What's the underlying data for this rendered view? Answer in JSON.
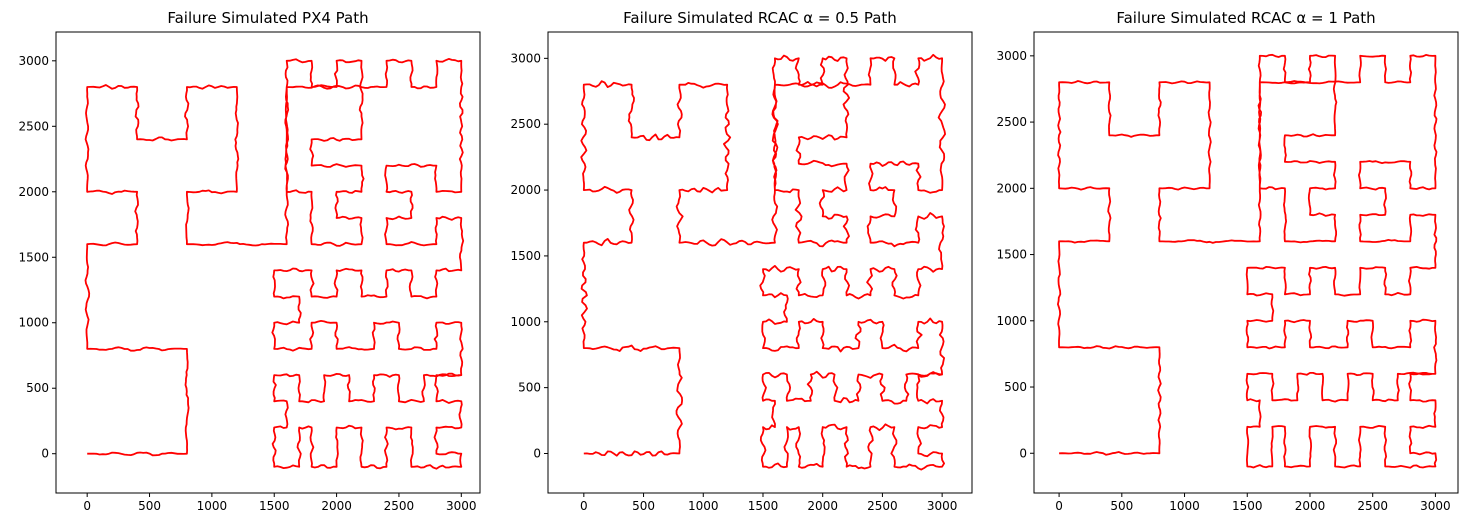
{
  "chart_data": [
    {
      "type": "line",
      "title": "Failure Simulated PX4 Path",
      "xlabel": "",
      "ylabel": "",
      "xlim": [
        -250,
        3150
      ],
      "ylim": [
        -300,
        3220
      ],
      "xticks": [
        0,
        500,
        1000,
        1500,
        2000,
        2500,
        3000
      ],
      "yticks": [
        0,
        500,
        1000,
        1500,
        2000,
        2500,
        3000
      ],
      "grid": false,
      "series": [
        {
          "color": "#ff0000",
          "disturbance": 0.25,
          "seed": 11
        }
      ]
    },
    {
      "type": "line",
      "title": "Failure Simulated RCAC α = 0.5 Path",
      "xlabel": "",
      "ylabel": "",
      "xlim": [
        -300,
        3250
      ],
      "ylim": [
        -300,
        3200
      ],
      "xticks": [
        0,
        500,
        1000,
        1500,
        2000,
        2500,
        3000
      ],
      "yticks": [
        0,
        500,
        1000,
        1500,
        2000,
        2500,
        3000
      ],
      "grid": false,
      "series": [
        {
          "color": "#ff0000",
          "disturbance": 0.45,
          "seed": 29
        }
      ]
    },
    {
      "type": "line",
      "title": "Failure Simulated RCAC α = 1 Path",
      "xlabel": "",
      "ylabel": "",
      "xlim": [
        -200,
        3180
      ],
      "ylim": [
        -300,
        3180
      ],
      "xticks": [
        0,
        500,
        1000,
        1500,
        2000,
        2500,
        3000
      ],
      "yticks": [
        0,
        500,
        1000,
        1500,
        2000,
        2500,
        3000
      ],
      "grid": false,
      "series": [
        {
          "color": "#ff0000",
          "disturbance": 0.18,
          "seed": 47
        }
      ]
    }
  ],
  "path_waypoints": [
    [
      0,
      0
    ],
    [
      800,
      0
    ],
    [
      800,
      800
    ],
    [
      0,
      800
    ],
    [
      0,
      1600
    ],
    [
      400,
      1600
    ],
    [
      400,
      2000
    ],
    [
      0,
      2000
    ],
    [
      0,
      2800
    ],
    [
      400,
      2800
    ],
    [
      400,
      2400
    ],
    [
      800,
      2400
    ],
    [
      800,
      2800
    ],
    [
      1200,
      2800
    ],
    [
      1200,
      2000
    ],
    [
      800,
      2000
    ],
    [
      800,
      1600
    ],
    [
      1600,
      1600
    ],
    [
      1600,
      2000
    ],
    [
      1600,
      2400
    ],
    [
      1600,
      2800
    ],
    [
      1600,
      3000
    ],
    [
      1800,
      3000
    ],
    [
      1800,
      2800
    ],
    [
      2000,
      2800
    ],
    [
      2000,
      3000
    ],
    [
      2200,
      3000
    ],
    [
      2200,
      2400
    ],
    [
      1800,
      2400
    ],
    [
      1800,
      2200
    ],
    [
      2200,
      2200
    ],
    [
      2200,
      2000
    ],
    [
      2000,
      2000
    ],
    [
      2000,
      1800
    ],
    [
      2200,
      1800
    ],
    [
      2200,
      1600
    ],
    [
      1800,
      1600
    ],
    [
      1800,
      2000
    ],
    [
      1600,
      2000
    ],
    [
      1600,
      2800
    ],
    [
      2400,
      2800
    ],
    [
      2400,
      3000
    ],
    [
      2600,
      3000
    ],
    [
      2600,
      2800
    ],
    [
      2800,
      2800
    ],
    [
      2800,
      3000
    ],
    [
      3000,
      3000
    ],
    [
      3000,
      2000
    ],
    [
      2800,
      2000
    ],
    [
      2800,
      2200
    ],
    [
      2400,
      2200
    ],
    [
      2400,
      2000
    ],
    [
      2600,
      2000
    ],
    [
      2600,
      1800
    ],
    [
      2400,
      1800
    ],
    [
      2400,
      1600
    ],
    [
      2800,
      1600
    ],
    [
      2800,
      1800
    ],
    [
      3000,
      1800
    ],
    [
      3000,
      1400
    ],
    [
      2800,
      1400
    ],
    [
      2800,
      1200
    ],
    [
      2600,
      1200
    ],
    [
      2600,
      1400
    ],
    [
      2400,
      1400
    ],
    [
      2400,
      1200
    ],
    [
      2200,
      1200
    ],
    [
      2200,
      1400
    ],
    [
      2000,
      1400
    ],
    [
      2000,
      1200
    ],
    [
      1800,
      1200
    ],
    [
      1800,
      1400
    ],
    [
      1500,
      1400
    ],
    [
      1500,
      1200
    ],
    [
      1700,
      1200
    ],
    [
      1700,
      1000
    ],
    [
      1500,
      1000
    ],
    [
      1500,
      800
    ],
    [
      1800,
      800
    ],
    [
      1800,
      1000
    ],
    [
      2000,
      1000
    ],
    [
      2000,
      800
    ],
    [
      2300,
      800
    ],
    [
      2300,
      1000
    ],
    [
      2500,
      1000
    ],
    [
      2500,
      800
    ],
    [
      2800,
      800
    ],
    [
      2800,
      1000
    ],
    [
      3000,
      1000
    ],
    [
      3000,
      600
    ],
    [
      2800,
      600
    ],
    [
      2800,
      400
    ],
    [
      3000,
      400
    ],
    [
      3000,
      200
    ],
    [
      2800,
      200
    ],
    [
      2800,
      0
    ],
    [
      3000,
      0
    ],
    [
      3000,
      -100
    ],
    [
      2600,
      -100
    ],
    [
      2600,
      200
    ],
    [
      2400,
      200
    ],
    [
      2400,
      -100
    ],
    [
      2200,
      -100
    ],
    [
      2200,
      200
    ],
    [
      2000,
      200
    ],
    [
      2000,
      -100
    ],
    [
      1800,
      -100
    ],
    [
      1800,
      200
    ],
    [
      1700,
      200
    ],
    [
      1700,
      -100
    ],
    [
      1500,
      -100
    ],
    [
      1500,
      200
    ],
    [
      1600,
      200
    ],
    [
      1600,
      400
    ],
    [
      1500,
      400
    ],
    [
      1500,
      600
    ],
    [
      1700,
      600
    ],
    [
      1700,
      400
    ],
    [
      1900,
      400
    ],
    [
      1900,
      600
    ],
    [
      2100,
      600
    ],
    [
      2100,
      400
    ],
    [
      2300,
      400
    ],
    [
      2300,
      600
    ],
    [
      2500,
      600
    ],
    [
      2500,
      400
    ],
    [
      2700,
      400
    ],
    [
      2700,
      600
    ],
    [
      3000,
      600
    ]
  ]
}
